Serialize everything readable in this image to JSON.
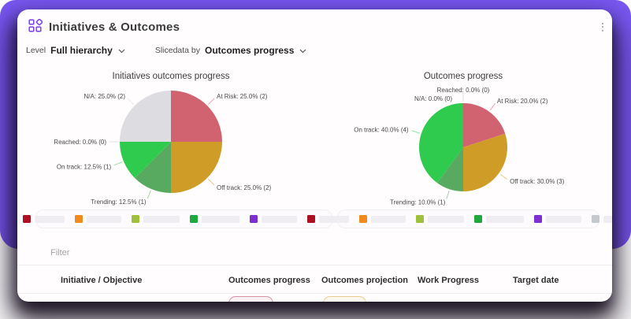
{
  "header": {
    "title": "Initiatives & Outcomes"
  },
  "controls": {
    "level_label": "Level",
    "level_value": "Full hierarchy",
    "slice_label": "Slicedata by",
    "slice_value": "Outcomes progress"
  },
  "chart_data": [
    {
      "type": "pie",
      "title": "Initiatives outcomes progress",
      "start_angle_deg": 0,
      "slices": [
        {
          "label": "At Risk",
          "pct": 25.0,
          "count": 2,
          "color": "#d0636f"
        },
        {
          "label": "Off track",
          "pct": 25.0,
          "count": 2,
          "color": "#cf9d27"
        },
        {
          "label": "Trending",
          "pct": 12.5,
          "count": 1,
          "color": "#57aa5f"
        },
        {
          "label": "On track",
          "pct": 12.5,
          "count": 1,
          "color": "#2ecb4e"
        },
        {
          "label": "Reached",
          "pct": 0.0,
          "count": 0,
          "color": "#8a45d8"
        },
        {
          "label": "N/A",
          "pct": 25.0,
          "count": 2,
          "color": "#dddce0"
        }
      ]
    },
    {
      "type": "pie",
      "title": "Outcomes progress",
      "start_angle_deg": 0,
      "slices": [
        {
          "label": "At Risk",
          "pct": 20.0,
          "count": 2,
          "color": "#d0636f"
        },
        {
          "label": "Off track",
          "pct": 30.0,
          "count": 3,
          "color": "#cf9d27"
        },
        {
          "label": "Trending",
          "pct": 10.0,
          "count": 1,
          "color": "#57aa5f"
        },
        {
          "label": "On track",
          "pct": 40.0,
          "count": 4,
          "color": "#2ecb4e"
        },
        {
          "label": "Reached",
          "pct": 0.0,
          "count": 0,
          "color": "#8a45d8"
        },
        {
          "label": "N/A",
          "pct": 0.0,
          "count": 0,
          "color": "#dddce0"
        }
      ]
    }
  ],
  "legend": {
    "labels_blurred": true,
    "swatches": [
      "#ad1022",
      "#f08a1d",
      "#9ec03c",
      "#1ea83e",
      "#7e2fd0",
      "#c3c9cd"
    ]
  },
  "table": {
    "filter_placeholder": "Filter",
    "columns": [
      "Initiative / Objective",
      "Outcomes progress",
      "Outcomes projection",
      "Work Progress",
      "Target date"
    ],
    "row_pills": [
      {
        "border": "#d691a2",
        "fill": "#fdf1f3"
      },
      {
        "border": "#e9cc92",
        "fill": "#fef9ef"
      }
    ]
  },
  "colors": {
    "background": "#7a58f4",
    "card": "#fffdfd",
    "accent": "#7a3df0"
  }
}
